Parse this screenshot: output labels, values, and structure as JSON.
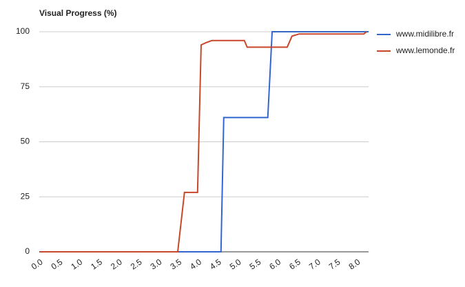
{
  "chart_data": {
    "type": "line",
    "title": "Visual Progress (%)",
    "xlim": [
      0,
      8.3
    ],
    "ylim": [
      0,
      100
    ],
    "xticks": [
      {
        "value": 0,
        "label": "0.0"
      },
      0.5,
      {
        "value": 1,
        "label": "1.0"
      },
      1.5,
      {
        "value": 2,
        "label": "2.0"
      },
      2.5,
      {
        "value": 3,
        "label": "3.0"
      },
      3.5,
      {
        "value": 4,
        "label": "4.0"
      },
      4.5,
      {
        "value": 5,
        "label": "5.0"
      },
      5.5,
      {
        "value": 6,
        "label": "6.0"
      },
      6.5,
      {
        "value": 7,
        "label": "7.0"
      },
      7.5,
      {
        "value": 8,
        "label": "8.0"
      }
    ],
    "yticks": [
      0,
      25,
      50,
      75,
      100
    ],
    "grid": true,
    "legend": "right",
    "series": [
      {
        "name": "www.midilibre.fr",
        "color": "#3366cc",
        "x": [
          0,
          4.58,
          4.65,
          5.76,
          5.87,
          8.3
        ],
        "values": [
          0,
          0,
          61,
          61,
          100,
          100
        ]
      },
      {
        "name": "www.lemonde.fr",
        "color": "#c8462a",
        "x": [
          0,
          3.49,
          3.66,
          3.99,
          4.08,
          4.2,
          4.35,
          5.17,
          5.24,
          6.25,
          6.37,
          6.55,
          8.18,
          8.25
        ],
        "values": [
          0,
          0,
          27,
          27,
          94,
          95,
          96,
          96,
          93,
          93,
          98,
          99,
          99,
          100
        ]
      }
    ]
  }
}
